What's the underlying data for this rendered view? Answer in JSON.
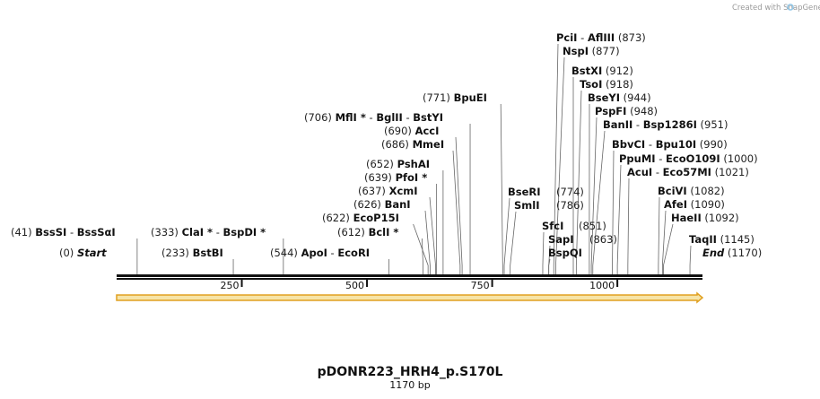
{
  "credit": "Created with SnapGene",
  "plasmid_name": "pDONR223_HRH4_p.S170L",
  "plasmid_length": "1170 bp",
  "bp_total": 1170,
  "colors": {
    "backbone": "#111111",
    "feature_fill": "#f6e4a8",
    "feature_stroke": "#e0a020",
    "leader": "#666666"
  },
  "ruler_ticks": [
    {
      "value": 250,
      "label": "250"
    },
    {
      "value": 500,
      "label": "500"
    },
    {
      "value": 750,
      "label": "750"
    },
    {
      "value": 1000,
      "label": "1000"
    }
  ],
  "sites": [
    {
      "id": "pcii-afliii",
      "parts": [
        {
          "text": "(873)",
          "style": "pos"
        }
      ],
      "names": [
        "PciI",
        "AflIII"
      ],
      "pos": "(873)",
      "bp": 873
    },
    {
      "id": "nspi",
      "names": [
        "NspI"
      ],
      "pos": "(877)",
      "bp": 877
    },
    {
      "id": "bstxi",
      "names": [
        "BstXI"
      ],
      "pos": "(912)",
      "bp": 912
    },
    {
      "id": "tsoi",
      "names": [
        "TsoI"
      ],
      "pos": "(918)",
      "bp": 918
    },
    {
      "id": "bseyi",
      "names": [
        "BseYI"
      ],
      "pos": "(944)",
      "bp": 944
    },
    {
      "id": "pspfi",
      "names": [
        "PspFI"
      ],
      "pos": "(948)",
      "bp": 948
    },
    {
      "id": "banii",
      "names": [
        "BanII",
        "Bsp1286I"
      ],
      "pos": "(951)",
      "bp": 951
    },
    {
      "id": "bbvci",
      "names": [
        "BbvCI",
        "Bpu10I"
      ],
      "pos": "(990)",
      "bp": 990
    },
    {
      "id": "ppumi",
      "names": [
        "PpuMI",
        "EcoO109I"
      ],
      "pos": "(1000)",
      "bp": 1000
    },
    {
      "id": "acui",
      "names": [
        "AcuI",
        "Eco57MI"
      ],
      "pos": "(1021)",
      "bp": 1021
    },
    {
      "id": "bcivi",
      "names": [
        "BciVI"
      ],
      "pos": "(1082)",
      "bp": 1082
    },
    {
      "id": "afei",
      "names": [
        "AfeI"
      ],
      "pos": "(1090)",
      "bp": 1090
    },
    {
      "id": "haeii",
      "names": [
        "HaeII"
      ],
      "pos": "(1092)",
      "bp": 1092
    },
    {
      "id": "taqii",
      "names": [
        "TaqII"
      ],
      "pos": "(1145)",
      "bp": 1145
    },
    {
      "id": "end",
      "names": [
        "End"
      ],
      "pos": "(1170)",
      "bp": 1170
    },
    {
      "id": "bsepi",
      "names": [
        "BpuEI"
      ],
      "pos": "(771)",
      "bp": 771
    },
    {
      "id": "mflii",
      "names": [
        "MflI *",
        "BglII",
        "BstYI"
      ],
      "pos": "(706)",
      "bp": 706
    },
    {
      "id": "acci",
      "names": [
        "AccI"
      ],
      "pos": "(690)",
      "bp": 690
    },
    {
      "id": "mmei",
      "names": [
        "MmeI"
      ],
      "pos": "(686)",
      "bp": 686
    },
    {
      "id": "pshai",
      "names": [
        "PshAI"
      ],
      "pos": "(652)",
      "bp": 652
    },
    {
      "id": "pfoi",
      "names": [
        "PfoI *"
      ],
      "pos": "(639)",
      "bp": 639
    },
    {
      "id": "xcmi",
      "names": [
        "XcmI"
      ],
      "pos": "(637)",
      "bp": 637
    },
    {
      "id": "bani",
      "names": [
        "BanI"
      ],
      "pos": "(626)",
      "bp": 626
    },
    {
      "id": "ecop15i",
      "names": [
        "EcoP15I"
      ],
      "pos": "(622)",
      "bp": 622
    },
    {
      "id": "bcli",
      "names": [
        "BclI *"
      ],
      "pos": "(612)",
      "bp": 612
    },
    {
      "id": "apoi",
      "names": [
        "ApoI",
        "EcoRI"
      ],
      "pos": "(544)",
      "bp": 544
    },
    {
      "id": "clai",
      "names": [
        "ClaI *",
        "BspDI *"
      ],
      "pos": "(333)",
      "bp": 333
    },
    {
      "id": "bstbi",
      "names": [
        "BstBI"
      ],
      "pos": "(233)",
      "bp": 233
    },
    {
      "id": "bsssi",
      "names": [
        "BssSI",
        "BssSαI"
      ],
      "pos": "(41)",
      "bp": 41
    },
    {
      "id": "start",
      "names": [
        "Start"
      ],
      "pos": "(0)",
      "bp": 0
    },
    {
      "id": "bseri",
      "names": [
        "BseRI"
      ],
      "pos": "(774)",
      "bp": 774
    },
    {
      "id": "smli",
      "names": [
        "SmlI"
      ],
      "pos": "(786)",
      "bp": 786
    },
    {
      "id": "sfci",
      "names": [
        "SfcI"
      ],
      "pos": "(851)",
      "bp": 851
    },
    {
      "id": "sapi",
      "names": [
        "SapI"
      ],
      "pos": "(863)",
      "bp": 863
    },
    {
      "id": "bspqi",
      "names": [
        "BspQI"
      ],
      "pos": "",
      "bp": 863
    }
  ]
}
